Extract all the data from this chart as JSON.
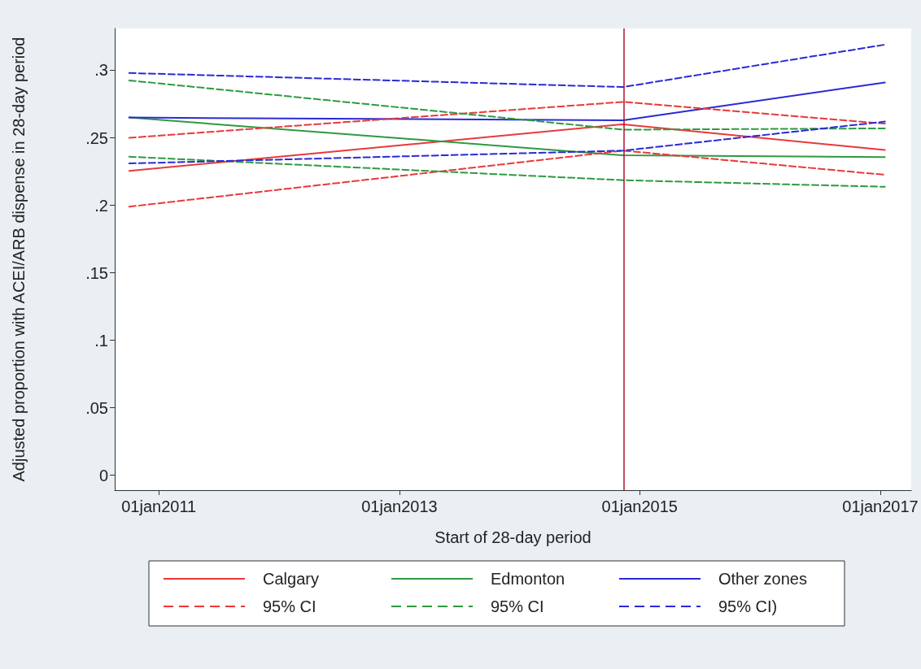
{
  "chart_data": {
    "type": "line",
    "xlabel": "Start of 28-day period",
    "ylabel": "Adjusted proportion with ACEI/ARB dispense in 28-day period",
    "x": [
      "2010-10-03",
      "2014-11-12",
      "2017-01-15"
    ],
    "series": [
      {
        "name": "Calgary",
        "color": "#e8393a",
        "line_style": "solid",
        "values": [
          0.2255,
          0.26,
          0.241
        ]
      },
      {
        "name": "Edmonton",
        "color": "#2e9a40",
        "line_style": "solid",
        "values": [
          0.265,
          0.237,
          0.2357
        ]
      },
      {
        "name": "Other zones",
        "color": "#2a2ad6",
        "line_style": "solid",
        "values": [
          0.265,
          0.263,
          0.291
        ]
      },
      {
        "name": "95% CI",
        "color": "#e8393a",
        "line_style": "dashed",
        "values": [
          0.25,
          0.2766,
          0.2605
        ]
      },
      {
        "name": "95% CI",
        "color": "#2e9a40",
        "line_style": "dashed",
        "values": [
          0.2925,
          0.256,
          0.257
        ]
      },
      {
        "name": "95% CI)",
        "color": "#2a2ad6",
        "line_style": "dashed",
        "values": [
          0.298,
          0.2876,
          0.319
        ]
      },
      {
        "color": "#e8393a",
        "line_style": "dashed",
        "values": [
          0.199,
          0.2405,
          0.2226
        ]
      },
      {
        "color": "#2e9a40",
        "line_style": "dashed",
        "values": [
          0.236,
          0.2186,
          0.2137
        ]
      },
      {
        "color": "#2a2ad6",
        "line_style": "dashed",
        "values": [
          0.231,
          0.2405,
          0.262
        ]
      }
    ],
    "xlim": [
      "2010-08-20",
      "2017-04-05"
    ],
    "xticks": [
      {
        "value": "2011-01-01",
        "label": "01jan2011"
      },
      {
        "value": "2013-01-01",
        "label": "01jan2013"
      },
      {
        "value": "2015-01-01",
        "label": "01jan2015"
      },
      {
        "value": "2017-01-01",
        "label": "01jan2017"
      }
    ],
    "ylim": [
      -0.011,
      0.331
    ],
    "yticks": [
      {
        "value": 0,
        "label": "0"
      },
      {
        "value": 0.05,
        "label": ".05"
      },
      {
        "value": 0.1,
        "label": ".1"
      },
      {
        "value": 0.15,
        "label": ".15"
      },
      {
        "value": 0.2,
        "label": ".2"
      },
      {
        "value": 0.25,
        "label": ".25"
      },
      {
        "value": 0.3,
        "label": ".3"
      }
    ],
    "ref_lines": [
      {
        "axis": "x",
        "value": "2014-11-15",
        "color": "#b0102a"
      }
    ],
    "grid": false,
    "legend": "bottom",
    "marker": "none"
  }
}
